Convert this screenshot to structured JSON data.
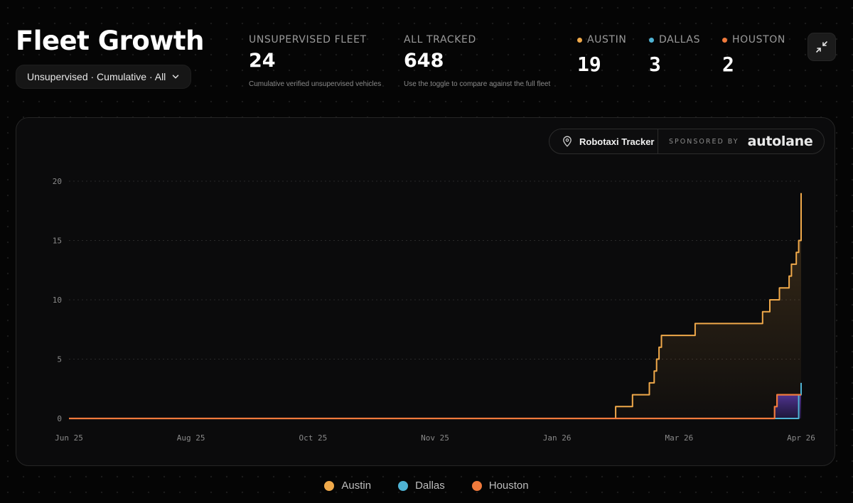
{
  "header": {
    "title": "Fleet Growth",
    "filter_label": "Unsupervised · Cumulative · All"
  },
  "stats": {
    "unsupervised": {
      "label": "UNSUPERVISED FLEET",
      "value": "24",
      "sub": "Cumulative verified unsupervised vehicles"
    },
    "tracked": {
      "label": "ALL TRACKED",
      "value": "648",
      "sub": "Use the toggle to compare against the full fleet"
    }
  },
  "cities": [
    {
      "label": "AUSTIN",
      "value": "19",
      "color": "#f0a94a"
    },
    {
      "label": "DALLAS",
      "value": "3",
      "color": "#4fb3d4"
    },
    {
      "label": "HOUSTON",
      "value": "2",
      "color": "#f07a3c"
    }
  ],
  "badge": {
    "tracker": "Robotaxi Tracker",
    "sponsored": "SPONSORED BY",
    "logo": "autolane"
  },
  "chart_data": {
    "type": "area",
    "title": "",
    "xlabel": "",
    "ylabel": "",
    "ylim": [
      0,
      20
    ],
    "yticks": [
      "0",
      "5",
      "10",
      "15",
      "20"
    ],
    "xticks": [
      "Jun 25",
      "Aug 25",
      "Oct 25",
      "Nov 25",
      "Jan 26",
      "Mar 26",
      "Apr 26"
    ],
    "x_domain": [
      "2025-06-01",
      "2026-04-01"
    ],
    "grid": true,
    "legend": "bottom",
    "series": [
      {
        "name": "Austin",
        "color": "#f0a94a",
        "step": true,
        "points": [
          [
            "2025-06-01",
            0
          ],
          [
            "2026-01-13",
            0
          ],
          [
            "2026-01-14",
            1
          ],
          [
            "2026-01-21",
            2
          ],
          [
            "2026-01-28",
            3
          ],
          [
            "2026-01-30",
            4
          ],
          [
            "2026-01-31",
            5
          ],
          [
            "2026-02-01",
            6
          ],
          [
            "2026-02-02",
            7
          ],
          [
            "2026-02-16",
            8
          ],
          [
            "2026-03-16",
            9
          ],
          [
            "2026-03-19",
            10
          ],
          [
            "2026-03-23",
            11
          ],
          [
            "2026-03-27",
            12
          ],
          [
            "2026-03-28",
            13
          ],
          [
            "2026-03-30",
            14
          ],
          [
            "2026-03-31",
            15
          ],
          [
            "2026-04-01",
            19
          ]
        ]
      },
      {
        "name": "Dallas",
        "color": "#4fb3d4",
        "step": true,
        "points": [
          [
            "2025-06-01",
            0
          ],
          [
            "2026-03-31",
            2
          ],
          [
            "2026-04-01",
            3
          ]
        ]
      },
      {
        "name": "Houston",
        "color": "#f07a3c",
        "step": true,
        "points": [
          [
            "2025-06-01",
            0
          ],
          [
            "2026-03-20",
            0
          ],
          [
            "2026-03-21",
            1
          ],
          [
            "2026-03-22",
            2
          ],
          [
            "2026-04-01",
            2
          ]
        ]
      }
    ]
  },
  "legend": [
    {
      "label": "Austin",
      "color": "#f0a94a"
    },
    {
      "label": "Dallas",
      "color": "#4fb3d4"
    },
    {
      "label": "Houston",
      "color": "#f07a3c"
    }
  ]
}
